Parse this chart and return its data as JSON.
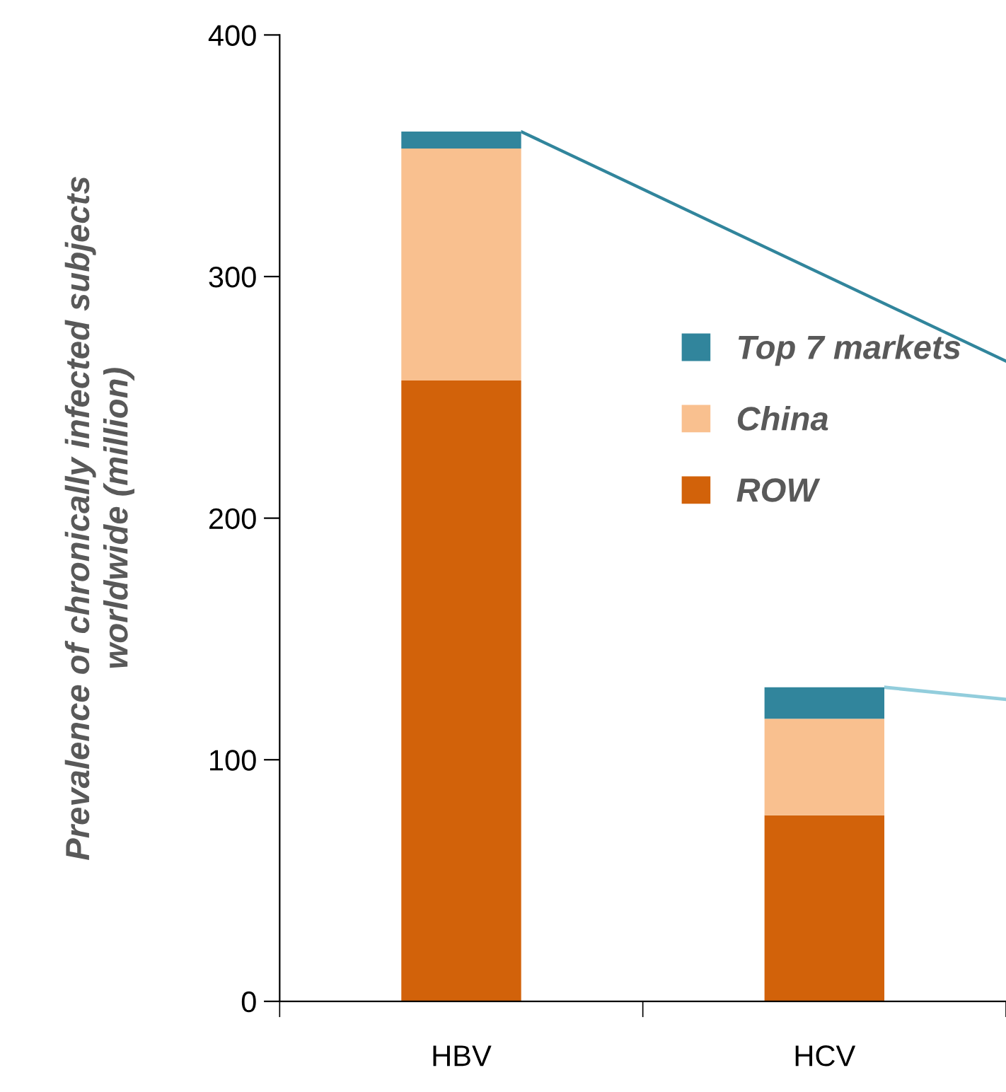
{
  "chart_data": {
    "type": "bar",
    "stacked": true,
    "ylabel": "Prevalence of chronically infected subjects worldwide (million)",
    "categories": [
      "HBV",
      "HCV"
    ],
    "series": [
      {
        "name": "ROW",
        "color": "#d2620a",
        "values": [
          257,
          77
        ]
      },
      {
        "name": "China",
        "color": "#f9c08f",
        "values": [
          96,
          40
        ]
      },
      {
        "name": "Top 7 markets",
        "color": "#31859c",
        "values": [
          7,
          13
        ]
      }
    ],
    "ylim": [
      0,
      400
    ],
    "yticks": [
      0,
      100,
      200,
      300,
      400
    ],
    "grid": false,
    "legend": "right"
  }
}
